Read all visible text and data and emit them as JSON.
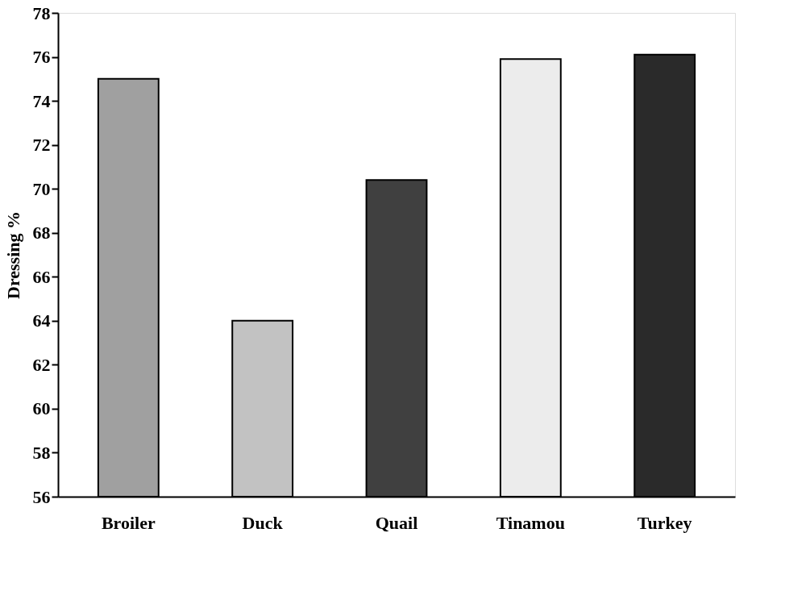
{
  "chart_data": {
    "type": "bar",
    "ylabel": "Dressing %",
    "categories": [
      "Broiler",
      "Duck",
      "Quail",
      "Tinamou",
      "Turkey"
    ],
    "values": [
      75.0,
      64.0,
      70.4,
      75.9,
      76.1
    ],
    "colors": [
      "#a0a0a0",
      "#c2c2c2",
      "#404040",
      "#ececec",
      "#2a2a2a"
    ],
    "ylim": [
      56,
      78
    ],
    "yticks": [
      56,
      58,
      60,
      62,
      64,
      66,
      68,
      70,
      72,
      74,
      76,
      78
    ],
    "grid": false
  }
}
